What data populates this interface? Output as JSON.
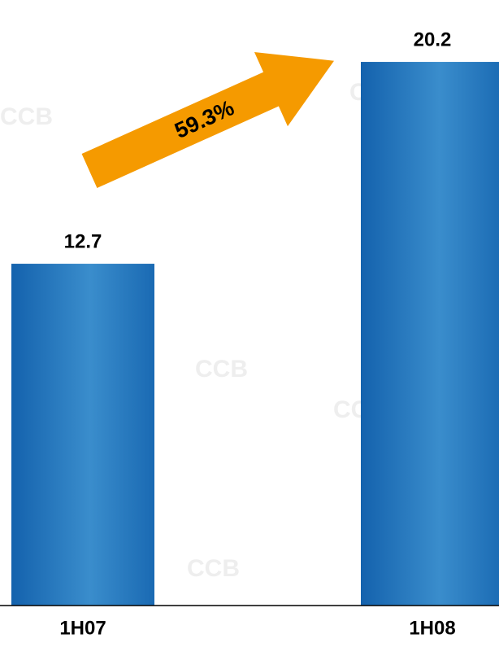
{
  "chart_data": {
    "type": "bar",
    "categories": [
      "1H07",
      "1H08"
    ],
    "values": [
      12.7,
      20.2
    ],
    "color": "#1f72b8",
    "ylim": [
      0,
      22.5
    ],
    "annotation": "59.3%",
    "annotation_color": "#f59a00",
    "watermark": "CCB"
  }
}
